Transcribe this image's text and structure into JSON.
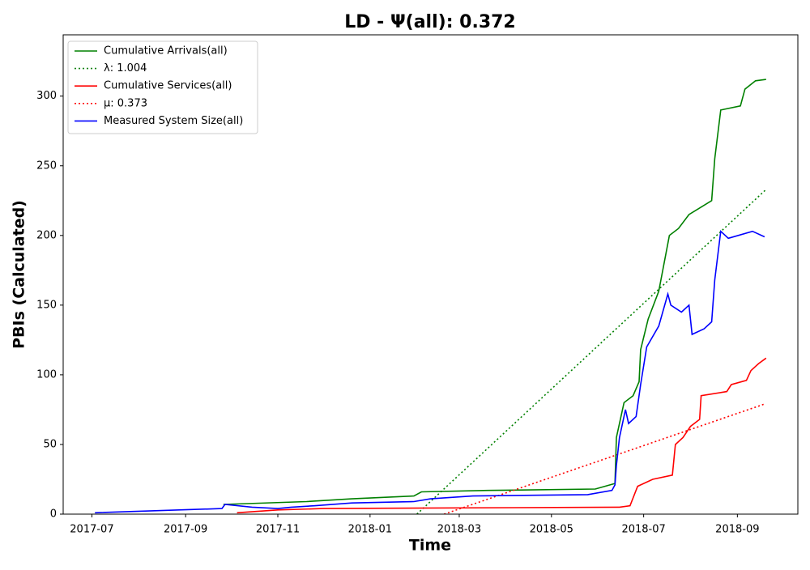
{
  "chart_data": {
    "type": "line",
    "title": "LD -  Ψ(all): 0.372",
    "xlabel": "Time",
    "ylabel": "PBIs (Calculated)",
    "xlim": [
      "2017-06-12",
      "2018-10-11"
    ],
    "ylim": [
      0,
      344
    ],
    "yticks": [
      0,
      50,
      100,
      150,
      200,
      250,
      300
    ],
    "xticks": [
      {
        "value": "2017-07-01",
        "label": "2017-07"
      },
      {
        "value": "2017-09-01",
        "label": "2017-09"
      },
      {
        "value": "2017-11-01",
        "label": "2017-11"
      },
      {
        "value": "2018-01-01",
        "label": "2018-01"
      },
      {
        "value": "2018-03-01",
        "label": "2018-03"
      },
      {
        "value": "2018-05-01",
        "label": "2018-05"
      },
      {
        "value": "2018-07-01",
        "label": "2018-07"
      },
      {
        "value": "2018-09-01",
        "label": "2018-09"
      }
    ],
    "legend": "upper left",
    "series": [
      {
        "name": "Cumulative Arrivals(all)",
        "color": "#008000",
        "dash": "solid",
        "x": [
          "2017-09-26",
          "2017-11-20",
          "2017-12-20",
          "2018-01-30",
          "2018-02-04",
          "2018-03-20",
          "2018-05-30",
          "2018-06-12",
          "2018-06-13",
          "2018-06-18",
          "2018-06-24",
          "2018-06-28",
          "2018-06-29",
          "2018-07-04",
          "2018-07-11",
          "2018-07-18",
          "2018-07-24",
          "2018-07-31",
          "2018-08-15",
          "2018-08-17",
          "2018-08-21",
          "2018-09-03",
          "2018-09-06",
          "2018-09-13",
          "2018-09-20"
        ],
        "values": [
          7,
          9,
          11,
          13,
          16,
          17,
          18,
          22,
          55,
          80,
          85,
          95,
          118,
          140,
          160,
          200,
          205,
          215,
          225,
          255,
          290,
          293,
          305,
          311,
          312
        ]
      },
      {
        "name": "λ: 1.004",
        "color": "#008000",
        "dash": "dotted",
        "x": [
          "2018-02-01",
          "2018-09-20"
        ],
        "values": [
          0,
          233
        ]
      },
      {
        "name": "Cumulative Services(all)",
        "color": "#ff0000",
        "dash": "solid",
        "x": [
          "2017-10-05",
          "2017-11-01",
          "2017-12-01",
          "2018-06-15",
          "2018-06-22",
          "2018-06-27",
          "2018-07-07",
          "2018-07-20",
          "2018-07-22",
          "2018-07-27",
          "2018-08-01",
          "2018-08-07",
          "2018-08-08",
          "2018-08-25",
          "2018-08-28",
          "2018-09-07",
          "2018-09-10",
          "2018-09-15",
          "2018-09-20"
        ],
        "values": [
          1,
          3,
          4,
          5,
          6,
          20,
          25,
          28,
          50,
          55,
          63,
          68,
          85,
          88,
          93,
          96,
          103,
          108,
          112
        ]
      },
      {
        "name": "μ: 0.373",
        "color": "#ff0000",
        "dash": "dotted",
        "x": [
          "2018-02-19",
          "2018-09-19"
        ],
        "values": [
          0,
          79
        ]
      },
      {
        "name": "Measured System Size(all)",
        "color": "#0000ff",
        "dash": "solid",
        "x": [
          "2017-07-03",
          "2017-09-25",
          "2017-09-27",
          "2017-10-15",
          "2017-11-01",
          "2017-11-10",
          "2017-11-25",
          "2017-12-20",
          "2018-01-30",
          "2018-02-10",
          "2018-03-10",
          "2018-05-25",
          "2018-06-10",
          "2018-06-12",
          "2018-06-13",
          "2018-06-15",
          "2018-06-19",
          "2018-06-21",
          "2018-06-26",
          "2018-06-29",
          "2018-07-03",
          "2018-07-11",
          "2018-07-17",
          "2018-07-19",
          "2018-07-26",
          "2018-07-31",
          "2018-08-02",
          "2018-08-10",
          "2018-08-15",
          "2018-08-17",
          "2018-08-21",
          "2018-08-26",
          "2018-09-11",
          "2018-09-19"
        ],
        "values": [
          1,
          4,
          7,
          5,
          4,
          5,
          6,
          8,
          9,
          11,
          13,
          14,
          17,
          21,
          35,
          55,
          75,
          65,
          70,
          93,
          120,
          135,
          158,
          150,
          145,
          150,
          129,
          133,
          138,
          168,
          203,
          198,
          203,
          199
        ]
      }
    ]
  }
}
